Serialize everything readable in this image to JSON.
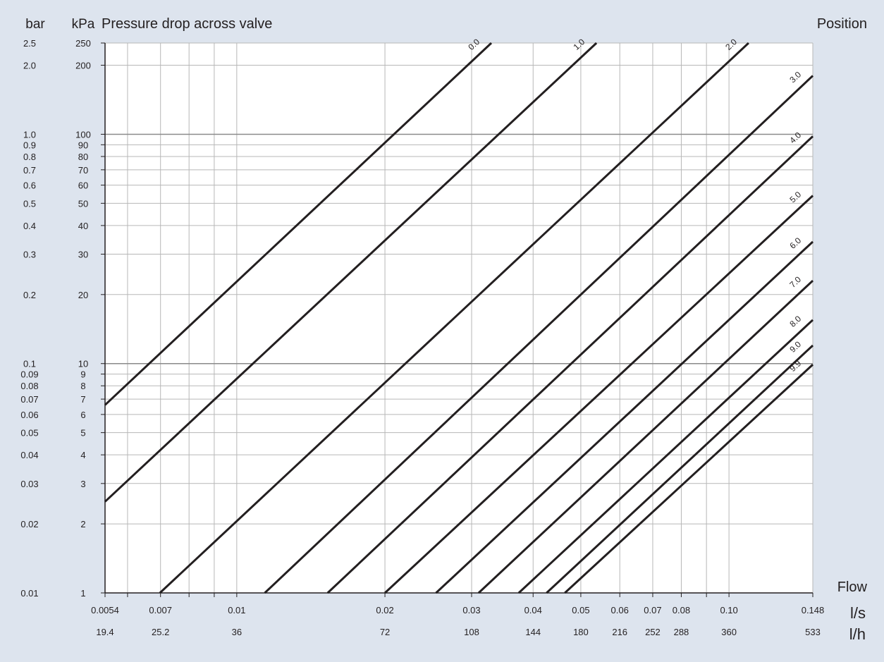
{
  "chart_data": {
    "type": "line",
    "title": "Pressure drop across valve",
    "y_unit_bar": "bar",
    "y_unit_kpa": "kPa",
    "legend_title": "Position",
    "x_axis_label": "Flow",
    "x_unit_ls": "l/s",
    "x_unit_lh": "l/h",
    "x_scale": "log",
    "y_scale": "log",
    "xlim": [
      0.0054,
      0.148
    ],
    "ylim_kpa": [
      1,
      250
    ],
    "grid": true,
    "background_color": "#dde4ee",
    "plot_color": "#ffffff",
    "line_color": "#231f20",
    "y_ticks": [
      {
        "kpa": 250,
        "kpa_label": "250",
        "bar_label": "2.5"
      },
      {
        "kpa": 200,
        "kpa_label": "200",
        "bar_label": "2.0"
      },
      {
        "kpa": 100,
        "kpa_label": "100",
        "bar_label": "1.0"
      },
      {
        "kpa": 90,
        "kpa_label": "90",
        "bar_label": "0.9"
      },
      {
        "kpa": 80,
        "kpa_label": "80",
        "bar_label": "0.8"
      },
      {
        "kpa": 70,
        "kpa_label": "70",
        "bar_label": "0.7"
      },
      {
        "kpa": 60,
        "kpa_label": "60",
        "bar_label": "0.6"
      },
      {
        "kpa": 50,
        "kpa_label": "50",
        "bar_label": "0.5"
      },
      {
        "kpa": 40,
        "kpa_label": "40",
        "bar_label": "0.4"
      },
      {
        "kpa": 30,
        "kpa_label": "30",
        "bar_label": "0.3"
      },
      {
        "kpa": 20,
        "kpa_label": "20",
        "bar_label": "0.2"
      },
      {
        "kpa": 10,
        "kpa_label": "10",
        "bar_label": "0.1"
      },
      {
        "kpa": 9,
        "kpa_label": "9",
        "bar_label": "0.09"
      },
      {
        "kpa": 8,
        "kpa_label": "8",
        "bar_label": "0.08"
      },
      {
        "kpa": 7,
        "kpa_label": "7",
        "bar_label": "0.07"
      },
      {
        "kpa": 6,
        "kpa_label": "6",
        "bar_label": "0.06"
      },
      {
        "kpa": 5,
        "kpa_label": "5",
        "bar_label": "0.05"
      },
      {
        "kpa": 4,
        "kpa_label": "4",
        "bar_label": "0.04"
      },
      {
        "kpa": 3,
        "kpa_label": "3",
        "bar_label": "0.03"
      },
      {
        "kpa": 2,
        "kpa_label": "2",
        "bar_label": "0.02"
      },
      {
        "kpa": 1,
        "kpa_label": "1",
        "bar_label": "0.01"
      }
    ],
    "x_ticks": [
      {
        "ls": 0.0054,
        "ls_label": "0.0054",
        "lh_label": "19.4"
      },
      {
        "ls": 0.006,
        "ls_label": "",
        "lh_label": ""
      },
      {
        "ls": 0.007,
        "ls_label": "0.007",
        "lh_label": "25.2"
      },
      {
        "ls": 0.008,
        "ls_label": "",
        "lh_label": ""
      },
      {
        "ls": 0.009,
        "ls_label": "",
        "lh_label": ""
      },
      {
        "ls": 0.01,
        "ls_label": "0.01",
        "lh_label": "36"
      },
      {
        "ls": 0.02,
        "ls_label": "0.02",
        "lh_label": "72"
      },
      {
        "ls": 0.03,
        "ls_label": "0.03",
        "lh_label": "108"
      },
      {
        "ls": 0.04,
        "ls_label": "0.04",
        "lh_label": "144"
      },
      {
        "ls": 0.05,
        "ls_label": "0.05",
        "lh_label": "180"
      },
      {
        "ls": 0.06,
        "ls_label": "0.06",
        "lh_label": "216"
      },
      {
        "ls": 0.07,
        "ls_label": "0.07",
        "lh_label": "252"
      },
      {
        "ls": 0.08,
        "ls_label": "0.08",
        "lh_label": "288"
      },
      {
        "ls": 0.09,
        "ls_label": "",
        "lh_label": ""
      },
      {
        "ls": 0.1,
        "ls_label": "0.10",
        "lh_label": "360"
      },
      {
        "ls": 0.148,
        "ls_label": "0.148",
        "lh_label": "533"
      }
    ],
    "series": [
      {
        "name": "0.0",
        "points": [
          {
            "x": 0.0054,
            "y": 6.6
          },
          {
            "x": 0.0329,
            "y": 250
          }
        ]
      },
      {
        "name": "1.0",
        "points": [
          {
            "x": 0.0054,
            "y": 2.5
          },
          {
            "x": 0.0538,
            "y": 250
          }
        ]
      },
      {
        "name": "2.0",
        "points": [
          {
            "x": 0.00698,
            "y": 1
          },
          {
            "x": 0.1096,
            "y": 250
          }
        ]
      },
      {
        "name": "3.0",
        "points": [
          {
            "x": 0.0114,
            "y": 1
          },
          {
            "x": 0.148,
            "y": 180
          }
        ]
      },
      {
        "name": "4.0",
        "points": [
          {
            "x": 0.0153,
            "y": 1
          },
          {
            "x": 0.148,
            "y": 98
          }
        ]
      },
      {
        "name": "5.0",
        "points": [
          {
            "x": 0.02,
            "y": 1
          },
          {
            "x": 0.148,
            "y": 54
          }
        ]
      },
      {
        "name": "6.0",
        "points": [
          {
            "x": 0.0254,
            "y": 1
          },
          {
            "x": 0.148,
            "y": 34
          }
        ]
      },
      {
        "name": "7.0",
        "points": [
          {
            "x": 0.031,
            "y": 1
          },
          {
            "x": 0.148,
            "y": 23
          }
        ]
      },
      {
        "name": "8.0",
        "points": [
          {
            "x": 0.0374,
            "y": 1
          },
          {
            "x": 0.148,
            "y": 15.5
          }
        ]
      },
      {
        "name": "9.0",
        "points": [
          {
            "x": 0.0426,
            "y": 1
          },
          {
            "x": 0.148,
            "y": 12
          }
        ]
      },
      {
        "name": "9.9",
        "points": [
          {
            "x": 0.0464,
            "y": 1
          },
          {
            "x": 0.148,
            "y": 9.9
          }
        ]
      }
    ]
  }
}
